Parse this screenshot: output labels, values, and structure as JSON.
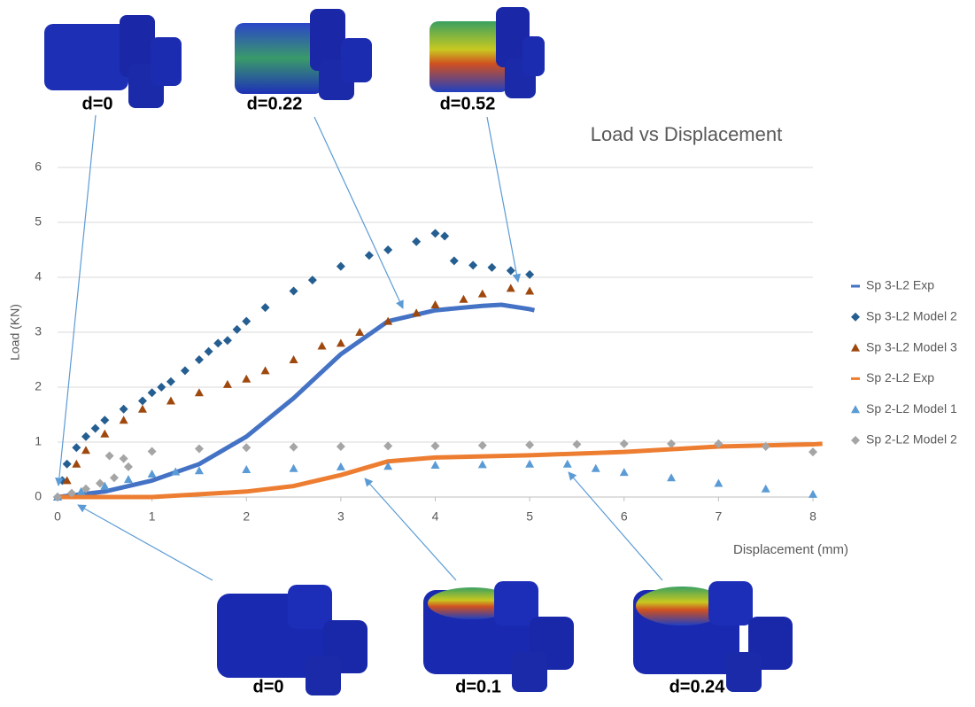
{
  "chart_data": {
    "type": "scatter",
    "title": "Load vs Displacement",
    "x_label": "Displacement (mm)",
    "y_label": "Load (KN)",
    "xlim": [
      0,
      8
    ],
    "ylim": [
      0,
      6
    ],
    "xticks": [
      0,
      1,
      2,
      3,
      4,
      5,
      6,
      7,
      8
    ],
    "yticks": [
      0,
      1,
      2,
      3,
      4,
      5,
      6
    ],
    "grid": true,
    "legend": "right",
    "series": [
      {
        "name": "Sp 3-L2 Exp",
        "color": "#4472c4",
        "marker": "line",
        "x": [
          0,
          0.5,
          1,
          1.5,
          2,
          2.5,
          3,
          3.5,
          4,
          4.5,
          4.7,
          5,
          5.05
        ],
        "values": [
          0,
          0.1,
          0.3,
          0.6,
          1.1,
          1.8,
          2.6,
          3.2,
          3.4,
          3.48,
          3.5,
          3.42,
          3.4
        ]
      },
      {
        "name": "Sp 3-L2 Model 2",
        "color": "#255e91",
        "marker": "diamond",
        "x": [
          0,
          0.05,
          0.1,
          0.2,
          0.3,
          0.4,
          0.5,
          0.7,
          0.9,
          1,
          1.1,
          1.2,
          1.35,
          1.5,
          1.6,
          1.7,
          1.8,
          1.9,
          2,
          2.2,
          2.5,
          2.7,
          3,
          3.3,
          3.5,
          3.8,
          4,
          4.1,
          4.2,
          4.4,
          4.6,
          4.8,
          5
        ],
        "values": [
          0,
          0.3,
          0.6,
          0.9,
          1.1,
          1.25,
          1.4,
          1.6,
          1.75,
          1.9,
          2,
          2.1,
          2.3,
          2.5,
          2.65,
          2.8,
          2.85,
          3.05,
          3.2,
          3.45,
          3.75,
          3.95,
          4.2,
          4.4,
          4.5,
          4.65,
          4.8,
          4.75,
          4.3,
          4.22,
          4.18,
          4.12,
          4.05
        ]
      },
      {
        "name": "Sp 3-L2 Model 3",
        "color": "#9e480e",
        "marker": "triangle",
        "x": [
          0,
          0.1,
          0.2,
          0.3,
          0.5,
          0.7,
          0.9,
          1.2,
          1.5,
          1.8,
          2,
          2.2,
          2.5,
          2.8,
          3,
          3.2,
          3.5,
          3.8,
          4,
          4.3,
          4.5,
          4.8,
          5
        ],
        "values": [
          0,
          0.3,
          0.6,
          0.85,
          1.15,
          1.4,
          1.6,
          1.75,
          1.9,
          2.05,
          2.15,
          2.3,
          2.5,
          2.75,
          2.8,
          3,
          3.2,
          3.35,
          3.5,
          3.6,
          3.7,
          3.8,
          3.75
        ]
      },
      {
        "name": "Sp 2-L2 Exp",
        "color": "#ed7d31",
        "marker": "line",
        "x": [
          0,
          1,
          2,
          2.5,
          3,
          3.5,
          4,
          5,
          6,
          7,
          8,
          8.1
        ],
        "values": [
          0,
          0,
          0.1,
          0.2,
          0.4,
          0.65,
          0.72,
          0.76,
          0.82,
          0.92,
          0.96,
          0.97
        ]
      },
      {
        "name": "Sp 2-L2 Model 1",
        "color": "#5b9bd5",
        "marker": "triangle",
        "x": [
          0,
          0.25,
          0.5,
          0.75,
          1,
          1.25,
          1.5,
          2,
          2.5,
          3,
          3.5,
          4,
          4.5,
          5,
          5.4,
          5.7,
          6,
          6.5,
          7,
          7.5,
          8
        ],
        "values": [
          0,
          0.1,
          0.2,
          0.32,
          0.42,
          0.46,
          0.48,
          0.5,
          0.52,
          0.55,
          0.56,
          0.58,
          0.59,
          0.6,
          0.6,
          0.52,
          0.45,
          0.35,
          0.25,
          0.15,
          0.05
        ]
      },
      {
        "name": "Sp 2-L2 Model 2",
        "color": "#a5a5a5",
        "marker": "diamond",
        "x": [
          0,
          0.15,
          0.3,
          0.45,
          0.6,
          0.75,
          0.7,
          0.55,
          1,
          1.5,
          2,
          2.5,
          3,
          3.5,
          4,
          4.5,
          5,
          5.5,
          6,
          6.5,
          7,
          7.5,
          8
        ],
        "values": [
          0,
          0.07,
          0.15,
          0.25,
          0.35,
          0.55,
          0.7,
          0.75,
          0.83,
          0.88,
          0.9,
          0.91,
          0.92,
          0.93,
          0.93,
          0.94,
          0.95,
          0.96,
          0.97,
          0.97,
          0.97,
          0.92,
          0.82
        ]
      }
    ],
    "annotations": [
      "d=0",
      "d=0.22",
      "d=0.52",
      "d=0",
      "d=0.1",
      "d=0.24"
    ]
  }
}
